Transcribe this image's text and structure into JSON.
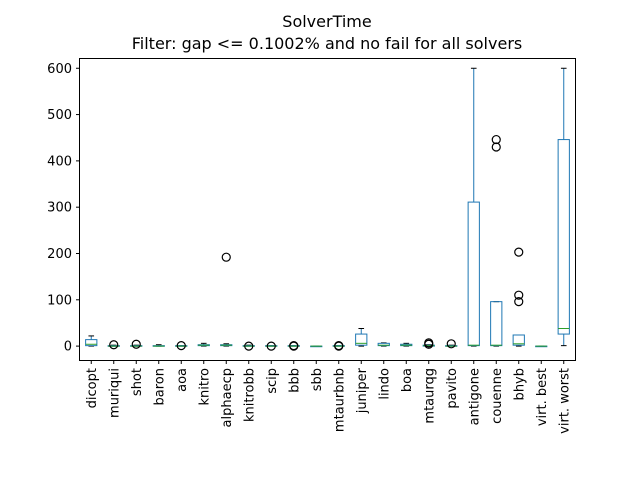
{
  "chart_data": {
    "type": "box",
    "title": "SolverTime",
    "subtitle": "Filter: gap <= 0.1002% and no fail for all solvers",
    "ylim": [
      -30,
      620
    ],
    "yticks": [
      0,
      100,
      200,
      300,
      400,
      500,
      600
    ],
    "grid": false,
    "colors": {
      "box": "#1f77b4",
      "median": "#2ca02c",
      "whisker": "#000000",
      "outlier": "#000000"
    },
    "categories": [
      "dicopt",
      "muriqui",
      "shot",
      "baron",
      "aoa",
      "knitro",
      "alphaecp",
      "knitrobb",
      "scip",
      "bbb",
      "sbb",
      "mtaurbnb",
      "juniper",
      "lindo",
      "boa",
      "mtaurqg",
      "pavito",
      "antigone",
      "couenne",
      "bhyb",
      "virt. best",
      "virt. worst"
    ],
    "boxes": [
      {
        "q1": 1,
        "median": 4,
        "q3": 14,
        "whislo": 0,
        "whishi": 22,
        "fliers": []
      },
      {
        "q1": 0,
        "median": 0,
        "q3": 1,
        "whislo": 0,
        "whishi": 2,
        "fliers": [
          3
        ]
      },
      {
        "q1": 0,
        "median": 0,
        "q3": 1,
        "whislo": 0,
        "whishi": 2,
        "fliers": [
          4
        ]
      },
      {
        "q1": 0,
        "median": 0,
        "q3": 1,
        "whislo": 0,
        "whishi": 3,
        "fliers": []
      },
      {
        "q1": 0,
        "median": 0,
        "q3": 1,
        "whislo": 0,
        "whishi": 1,
        "fliers": [
          1
        ]
      },
      {
        "q1": 1,
        "median": 2,
        "q3": 3,
        "whislo": 0,
        "whishi": 6,
        "fliers": []
      },
      {
        "q1": 1,
        "median": 2,
        "q3": 3,
        "whislo": 0,
        "whishi": 5,
        "fliers": [
          192
        ]
      },
      {
        "q1": 0,
        "median": 0,
        "q3": 1,
        "whislo": 0,
        "whishi": 2,
        "fliers": [
          0
        ]
      },
      {
        "q1": 0,
        "median": 0,
        "q3": 1,
        "whislo": 0,
        "whishi": 1,
        "fliers": [
          0
        ]
      },
      {
        "q1": 0,
        "median": 0,
        "q3": 1,
        "whislo": 0,
        "whishi": 1,
        "fliers": [
          0,
          1
        ]
      },
      {
        "q1": 0,
        "median": 0,
        "q3": 0,
        "whislo": 0,
        "whishi": 0,
        "fliers": []
      },
      {
        "q1": 0,
        "median": 0,
        "q3": 1,
        "whislo": 0,
        "whishi": 1,
        "fliers": [
          0,
          1
        ]
      },
      {
        "q1": 2,
        "median": 6,
        "q3": 26,
        "whislo": 0,
        "whishi": 38,
        "fliers": []
      },
      {
        "q1": 1,
        "median": 2,
        "q3": 6,
        "whislo": 0,
        "whishi": 7,
        "fliers": []
      },
      {
        "q1": 1,
        "median": 2,
        "q3": 4,
        "whislo": 0,
        "whishi": 6,
        "fliers": []
      },
      {
        "q1": 0,
        "median": 1,
        "q3": 2,
        "whislo": 0,
        "whishi": 3,
        "fliers": [
          4,
          7
        ]
      },
      {
        "q1": 0,
        "median": 0,
        "q3": 1,
        "whislo": 0,
        "whishi": 2,
        "fliers": [
          5
        ]
      },
      {
        "q1": 1,
        "median": 2,
        "q3": 311,
        "whislo": 0,
        "whishi": 600,
        "fliers": []
      },
      {
        "q1": 1,
        "median": 2,
        "q3": 96,
        "whislo": 0,
        "whishi": 96,
        "fliers": [
          430,
          446
        ]
      },
      {
        "q1": 2,
        "median": 5,
        "q3": 24,
        "whislo": 0,
        "whishi": 24,
        "fliers": [
          96,
          110,
          203
        ]
      },
      {
        "q1": 0,
        "median": 0,
        "q3": 0,
        "whislo": 0,
        "whishi": 0,
        "fliers": []
      },
      {
        "q1": 26,
        "median": 38,
        "q3": 446,
        "whislo": 1,
        "whishi": 600,
        "fliers": []
      }
    ]
  }
}
